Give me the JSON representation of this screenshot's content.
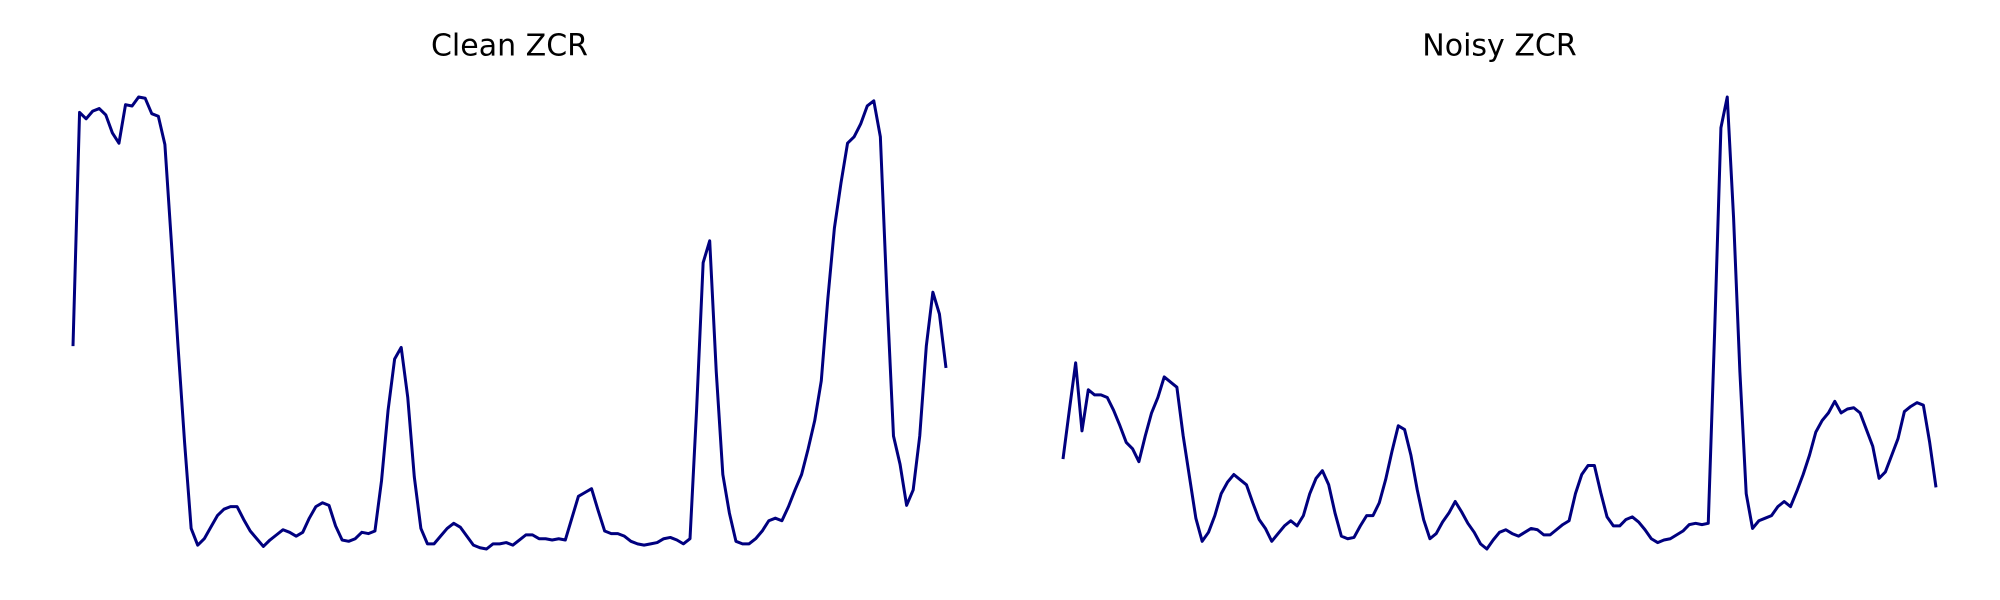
{
  "chart_data": [
    {
      "type": "line",
      "title": "Clean ZCR",
      "color": "#00007f",
      "values": [
        0.17,
        0.352,
        0.347,
        0.353,
        0.355,
        0.35,
        0.336,
        0.328,
        0.358,
        0.357,
        0.364,
        0.363,
        0.351,
        0.349,
        0.327,
        0.25,
        0.17,
        0.095,
        0.028,
        0.015,
        0.02,
        0.029,
        0.038,
        0.043,
        0.045,
        0.045,
        0.035,
        0.026,
        0.02,
        0.014,
        0.019,
        0.023,
        0.027,
        0.025,
        0.022,
        0.025,
        0.036,
        0.045,
        0.048,
        0.046,
        0.03,
        0.019,
        0.018,
        0.02,
        0.025,
        0.024,
        0.026,
        0.065,
        0.12,
        0.16,
        0.169,
        0.13,
        0.068,
        0.028,
        0.016,
        0.016,
        0.022,
        0.028,
        0.032,
        0.029,
        0.022,
        0.015,
        0.013,
        0.012,
        0.016,
        0.016,
        0.017,
        0.015,
        0.019,
        0.023,
        0.023,
        0.02,
        0.02,
        0.019,
        0.02,
        0.019,
        0.036,
        0.053,
        0.056,
        0.059,
        0.042,
        0.026,
        0.024,
        0.024,
        0.022,
        0.018,
        0.016,
        0.015,
        0.016,
        0.017,
        0.02,
        0.021,
        0.019,
        0.016,
        0.02,
        0.12,
        0.235,
        0.252,
        0.15,
        0.07,
        0.04,
        0.018,
        0.016,
        0.016,
        0.02,
        0.026,
        0.034,
        0.036,
        0.034,
        0.045,
        0.058,
        0.07,
        0.09,
        0.112,
        0.143,
        0.207,
        0.262,
        0.297,
        0.328,
        0.333,
        0.343,
        0.357,
        0.361,
        0.333,
        0.21,
        0.1,
        0.078,
        0.046,
        0.058,
        0.1,
        0.17,
        0.212,
        0.195,
        0.153
      ]
    },
    {
      "type": "line",
      "title": "Noisy ZCR",
      "color": "#00007f",
      "values": [
        0.082,
        0.12,
        0.157,
        0.104,
        0.136,
        0.132,
        0.132,
        0.13,
        0.12,
        0.108,
        0.095,
        0.09,
        0.08,
        0.1,
        0.118,
        0.13,
        0.146,
        0.142,
        0.138,
        0.1,
        0.068,
        0.036,
        0.018,
        0.025,
        0.038,
        0.055,
        0.064,
        0.07,
        0.066,
        0.062,
        0.048,
        0.035,
        0.028,
        0.018,
        0.024,
        0.03,
        0.034,
        0.03,
        0.038,
        0.055,
        0.067,
        0.073,
        0.062,
        0.04,
        0.022,
        0.02,
        0.021,
        0.03,
        0.038,
        0.038,
        0.048,
        0.066,
        0.088,
        0.108,
        0.105,
        0.085,
        0.058,
        0.035,
        0.02,
        0.024,
        0.033,
        0.04,
        0.049,
        0.041,
        0.032,
        0.025,
        0.016,
        0.012,
        0.019,
        0.025,
        0.027,
        0.024,
        0.022,
        0.025,
        0.028,
        0.027,
        0.023,
        0.023,
        0.027,
        0.031,
        0.034,
        0.055,
        0.07,
        0.077,
        0.077,
        0.056,
        0.037,
        0.03,
        0.03,
        0.035,
        0.037,
        0.033,
        0.027,
        0.02,
        0.017,
        0.019,
        0.02,
        0.023,
        0.026,
        0.031,
        0.032,
        0.031,
        0.032,
        0.18,
        0.34,
        0.364,
        0.27,
        0.15,
        0.055,
        0.028,
        0.034,
        0.036,
        0.038,
        0.045,
        0.049,
        0.045,
        0.057,
        0.07,
        0.085,
        0.103,
        0.112,
        0.118,
        0.127,
        0.118,
        0.121,
        0.122,
        0.118,
        0.105,
        0.092,
        0.067,
        0.072,
        0.085,
        0.098,
        0.119,
        0.123,
        0.126,
        0.124,
        0.095,
        0.06
      ]
    }
  ]
}
